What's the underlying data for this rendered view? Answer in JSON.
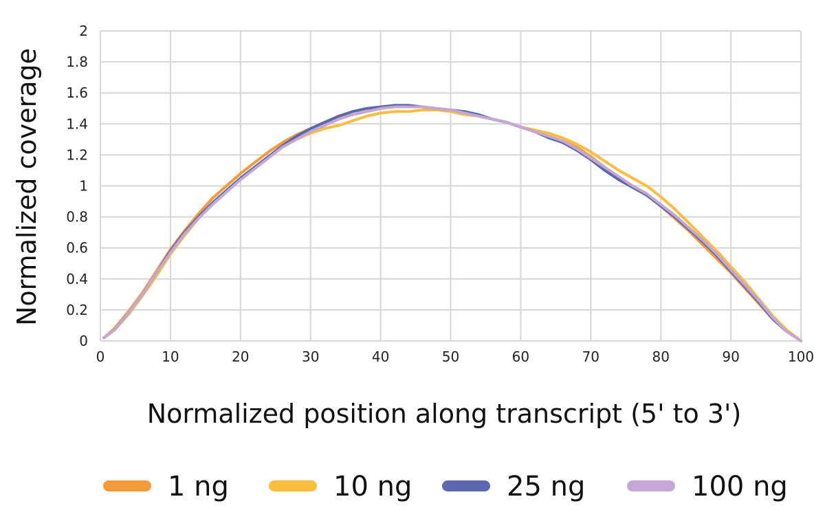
{
  "chart_data": {
    "type": "line",
    "title": "",
    "xlabel": "Normalized position along transcript (5' to 3')",
    "ylabel": "Normalized coverage",
    "xlim": [
      0,
      100
    ],
    "ylim": [
      0,
      2
    ],
    "xticks": [
      0,
      10,
      20,
      30,
      40,
      50,
      60,
      70,
      80,
      90,
      100
    ],
    "yticks": [
      0,
      0.2,
      0.4,
      0.6,
      0.8,
      1,
      1.2,
      1.4,
      1.6,
      1.8,
      2
    ],
    "ytick_labels": [
      "0",
      "0.2",
      "0.4",
      "0.6",
      "0.8",
      "1",
      "1.2",
      "1.4",
      "1.6",
      "1.8",
      "2"
    ],
    "grid": true,
    "legend_position": "bottom",
    "x": [
      0.5,
      2,
      4,
      6,
      8,
      10,
      12,
      14,
      16,
      18,
      20,
      22,
      24,
      26,
      28,
      30,
      32,
      34,
      36,
      38,
      40,
      42,
      44,
      46,
      48,
      50,
      52,
      54,
      56,
      58,
      60,
      62,
      64,
      66,
      68,
      70,
      72,
      74,
      76,
      78,
      80,
      82,
      84,
      86,
      88,
      90,
      92,
      94,
      96,
      98,
      100
    ],
    "series": [
      {
        "name": "1 ng",
        "color": "#f39a3a",
        "values": [
          0.02,
          0.08,
          0.19,
          0.31,
          0.45,
          0.59,
          0.71,
          0.82,
          0.92,
          1.0,
          1.08,
          1.15,
          1.22,
          1.28,
          1.33,
          1.37,
          1.41,
          1.44,
          1.46,
          1.48,
          1.5,
          1.51,
          1.51,
          1.51,
          1.5,
          1.49,
          1.47,
          1.45,
          1.43,
          1.41,
          1.38,
          1.35,
          1.32,
          1.29,
          1.25,
          1.19,
          1.12,
          1.05,
          0.99,
          0.94,
          0.87,
          0.79,
          0.71,
          0.62,
          0.53,
          0.44,
          0.34,
          0.24,
          0.14,
          0.06,
          0.0
        ]
      },
      {
        "name": "10 ng",
        "color": "#fbbd3d",
        "values": [
          0.02,
          0.07,
          0.17,
          0.29,
          0.42,
          0.56,
          0.68,
          0.79,
          0.89,
          0.97,
          1.05,
          1.12,
          1.19,
          1.25,
          1.3,
          1.34,
          1.37,
          1.39,
          1.42,
          1.45,
          1.47,
          1.48,
          1.48,
          1.49,
          1.49,
          1.48,
          1.46,
          1.45,
          1.43,
          1.41,
          1.38,
          1.36,
          1.34,
          1.31,
          1.27,
          1.22,
          1.16,
          1.1,
          1.05,
          1.0,
          0.93,
          0.85,
          0.76,
          0.67,
          0.58,
          0.48,
          0.38,
          0.27,
          0.16,
          0.07,
          0.0
        ]
      },
      {
        "name": "25 ng",
        "color": "#5a69ad",
        "values": [
          0.02,
          0.07,
          0.18,
          0.3,
          0.44,
          0.58,
          0.7,
          0.8,
          0.89,
          0.97,
          1.05,
          1.12,
          1.19,
          1.26,
          1.32,
          1.37,
          1.41,
          1.45,
          1.48,
          1.5,
          1.51,
          1.52,
          1.52,
          1.51,
          1.5,
          1.49,
          1.48,
          1.46,
          1.43,
          1.41,
          1.38,
          1.35,
          1.31,
          1.28,
          1.23,
          1.17,
          1.1,
          1.04,
          0.99,
          0.94,
          0.87,
          0.8,
          0.72,
          0.64,
          0.55,
          0.45,
          0.35,
          0.25,
          0.14,
          0.06,
          0.0
        ]
      },
      {
        "name": "100 ng",
        "color": "#c4a7d4",
        "values": [
          0.02,
          0.07,
          0.18,
          0.3,
          0.44,
          0.57,
          0.69,
          0.79,
          0.88,
          0.96,
          1.04,
          1.11,
          1.18,
          1.25,
          1.3,
          1.35,
          1.39,
          1.43,
          1.46,
          1.48,
          1.5,
          1.51,
          1.51,
          1.51,
          1.5,
          1.49,
          1.47,
          1.45,
          1.43,
          1.41,
          1.38,
          1.35,
          1.32,
          1.29,
          1.24,
          1.18,
          1.12,
          1.06,
          1.0,
          0.95,
          0.88,
          0.81,
          0.73,
          0.65,
          0.56,
          0.46,
          0.36,
          0.26,
          0.15,
          0.06,
          0.0
        ]
      }
    ]
  }
}
